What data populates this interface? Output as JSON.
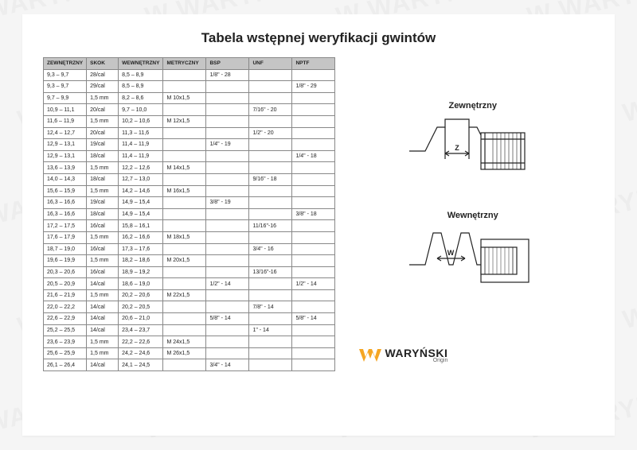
{
  "title": "Tabela wstępnej weryfikacji gwintów",
  "columns": [
    "ZEWNĘTRZNY",
    "SKOK",
    "WEWNĘTRZNY",
    "METRYCZNY",
    "BSP",
    "UNF",
    "NPTF"
  ],
  "rows": [
    [
      "9,3 – 9,7",
      "28/cal",
      "8,5 – 8,9",
      "",
      "1/8\" - 28",
      "",
      ""
    ],
    [
      "9,3 – 9,7",
      "29/cal",
      "8,5 – 8,9",
      "",
      "",
      "",
      "1/8\" - 29"
    ],
    [
      "9,7 – 9,9",
      "1,5 mm",
      "8,2 – 8,6",
      "M 10x1,5",
      "",
      "",
      ""
    ],
    [
      "10,9 – 11,1",
      "20/cal",
      "9,7 – 10,0",
      "",
      "",
      "7/16\" - 20",
      ""
    ],
    [
      "11,6 – 11,9",
      "1,5 mm",
      "10,2 – 10,6",
      "M 12x1,5",
      "",
      "",
      ""
    ],
    [
      "12,4 – 12,7",
      "20/cal",
      "11,3 – 11,6",
      "",
      "",
      "1/2\" - 20",
      ""
    ],
    [
      "12,9 – 13,1",
      "19/cal",
      "11,4 – 11,9",
      "",
      "1/4\" - 19",
      "",
      ""
    ],
    [
      "12,9 – 13,1",
      "18/cal",
      "11,4 – 11,9",
      "",
      "",
      "",
      "1/4\" - 18"
    ],
    [
      "13,6 – 13,9",
      "1,5 mm",
      "12,2 – 12,6",
      "M 14x1,5",
      "",
      "",
      ""
    ],
    [
      "14,0 – 14,3",
      "18/cal",
      "12,7 – 13,0",
      "",
      "",
      "9/16\" - 18",
      ""
    ],
    [
      "15,6 – 15,9",
      "1,5 mm",
      "14,2 – 14,6",
      "M 16x1,5",
      "",
      "",
      ""
    ],
    [
      "16,3 – 16,6",
      "19/cal",
      "14,9 – 15,4",
      "",
      "3/8\" - 19",
      "",
      ""
    ],
    [
      "16,3 – 16,6",
      "18/cal",
      "14,9 – 15,4",
      "",
      "",
      "",
      "3/8\" - 18"
    ],
    [
      "17,2 – 17,5",
      "16/cal",
      "15,8 – 16,1",
      "",
      "",
      "11/16\"-16",
      ""
    ],
    [
      "17,6 – 17,9",
      "1,5 mm",
      "16,2 – 16,6",
      "M 18x1,5",
      "",
      "",
      ""
    ],
    [
      "18,7 – 19,0",
      "16/cal",
      "17,3 – 17,6",
      "",
      "",
      "3/4\" - 16",
      ""
    ],
    [
      "19,6 – 19,9",
      "1,5 mm",
      "18,2 – 18,6",
      "M 20x1,5",
      "",
      "",
      ""
    ],
    [
      "20,3 – 20,6",
      "16/cal",
      "18,9 – 19,2",
      "",
      "",
      "13/16\"-16",
      ""
    ],
    [
      "20,5 – 20,9",
      "14/cal",
      "18,6 – 19,0",
      "",
      "1/2\" - 14",
      "",
      "1/2\" - 14"
    ],
    [
      "21,6 – 21,9",
      "1,5 mm",
      "20,2 – 20,6",
      "M 22x1,5",
      "",
      "",
      ""
    ],
    [
      "22,0 – 22,2",
      "14/cal",
      "20,2 – 20,5",
      "",
      "",
      "7/8\" - 14",
      ""
    ],
    [
      "22,6 – 22,9",
      "14/cal",
      "20,6 – 21,0",
      "",
      "5/8\" - 14",
      "",
      "5/8\" - 14"
    ],
    [
      "25,2 – 25,5",
      "14/cal",
      "23,4 – 23,7",
      "",
      "",
      "1\" - 14",
      ""
    ],
    [
      "23,6 – 23,9",
      "1,5 mm",
      "22,2 – 22,6",
      "M 24x1,5",
      "",
      "",
      ""
    ],
    [
      "25,6 – 25,9",
      "1,5 mm",
      "24,2 – 24,6",
      "M 26x1,5",
      "",
      "",
      ""
    ],
    [
      "26,1 – 26,4",
      "14/cal",
      "24,1 – 24,5",
      "",
      "3/4\" - 14",
      "",
      ""
    ]
  ],
  "diagrams": {
    "external": {
      "label": "Zewnętrzny",
      "letter": "Z"
    },
    "internal": {
      "label": "Wewnętrzny",
      "letter": "W"
    }
  },
  "brand": {
    "name": "WARYŃSKI",
    "sub": "Origin"
  },
  "watermark_text": "WARYŃSKI",
  "colors": {
    "header_bg": "#c5c5c5",
    "border": "#888888",
    "text": "#222222",
    "brand_accent": "#f5a623"
  }
}
